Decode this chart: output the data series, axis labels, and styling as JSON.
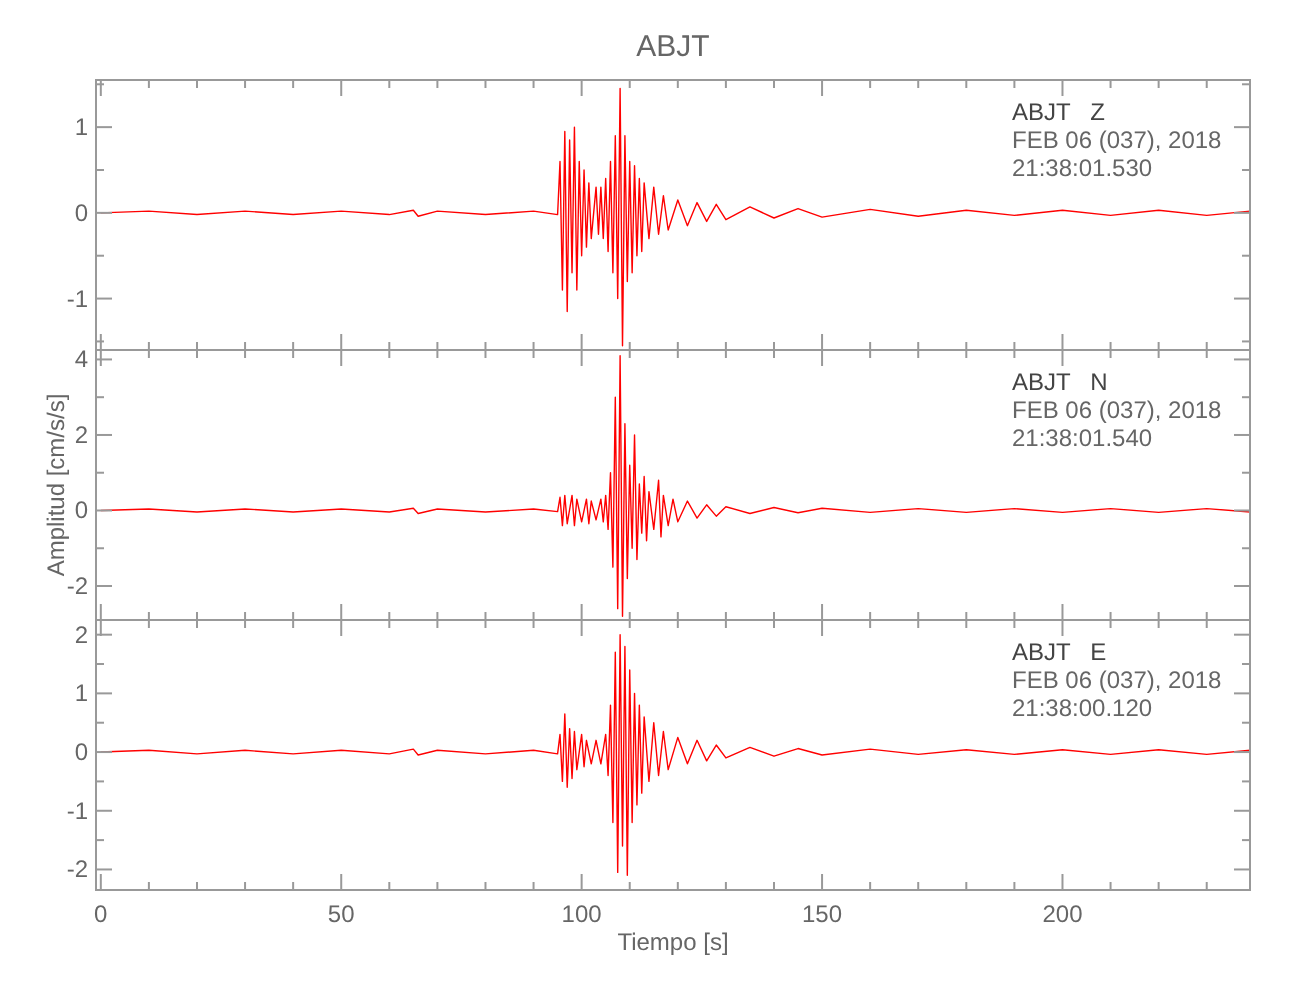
{
  "chart_data": [
    {
      "type": "line",
      "title": "ABJT",
      "x": [
        0,
        10,
        20,
        30,
        40,
        50,
        60,
        65,
        66,
        70,
        80,
        90,
        95,
        95.5,
        96,
        96.5,
        97,
        97.5,
        98,
        98.5,
        99,
        99.5,
        100,
        100.5,
        101,
        101.5,
        102,
        103,
        103.5,
        104,
        104.5,
        105,
        105.5,
        106,
        106.5,
        107,
        107.5,
        108,
        108.5,
        109,
        109.5,
        110,
        110.5,
        111,
        111.5,
        112,
        112.5,
        113,
        114,
        115,
        116,
        117,
        118,
        120,
        122,
        124,
        126,
        128,
        130,
        135,
        140,
        145,
        150,
        160,
        170,
        180,
        190,
        200,
        210,
        220,
        230,
        239
      ],
      "series": [
        {
          "color": "#ff0000",
          "values": [
            0,
            0.02,
            -0.02,
            0.02,
            -0.02,
            0.02,
            -0.02,
            0.03,
            -0.04,
            0.02,
            -0.02,
            0.02,
            -0.02,
            0.6,
            -0.9,
            0.95,
            -1.15,
            0.85,
            -0.7,
            1.0,
            -0.9,
            0.6,
            -0.5,
            0.5,
            -0.4,
            0.35,
            -0.3,
            0.3,
            -0.25,
            0.3,
            -0.3,
            0.4,
            -0.45,
            0.6,
            -0.7,
            0.9,
            -1.0,
            1.45,
            -1.55,
            0.9,
            -0.8,
            0.6,
            -0.7,
            0.55,
            -0.5,
            0.4,
            -0.45,
            0.35,
            -0.3,
            0.3,
            -0.25,
            0.2,
            -0.2,
            0.15,
            -0.15,
            0.12,
            -0.1,
            0.1,
            -0.08,
            0.07,
            -0.06,
            0.05,
            -0.05,
            0.04,
            -0.04,
            0.03,
            -0.03,
            0.03,
            -0.03,
            0.03,
            -0.03,
            0.02
          ]
        }
      ],
      "xlim": [
        -1,
        239
      ],
      "xticks": [
        0,
        {
          "value": 10,
          "label": null
        },
        {
          "value": 20,
          "label": null
        },
        {
          "value": 30,
          "label": null
        },
        {
          "value": 40,
          "label": null
        },
        50,
        {
          "value": 60,
          "label": null
        },
        {
          "value": 70,
          "label": null
        },
        {
          "value": 80,
          "label": null
        },
        {
          "value": 90,
          "label": null
        },
        100,
        {
          "value": 110,
          "label": null
        },
        {
          "value": 120,
          "label": null
        },
        {
          "value": 130,
          "label": null
        },
        {
          "value": 140,
          "label": null
        },
        150,
        {
          "value": 160,
          "label": null
        },
        {
          "value": 170,
          "label": null
        },
        {
          "value": 180,
          "label": null
        },
        {
          "value": 190,
          "label": null
        },
        200,
        {
          "value": 210,
          "label": null
        },
        {
          "value": 220,
          "label": null
        },
        {
          "value": 230,
          "label": null
        }
      ],
      "ylim": [
        -1.6,
        1.55
      ],
      "yticks": [
        {
          "value": -1.5,
          "label": null
        },
        -1,
        {
          "value": -0.5,
          "label": null
        },
        0,
        {
          "value": 0.5,
          "label": null
        },
        1,
        {
          "value": 1.5,
          "label": null
        }
      ],
      "tick_labels": "y",
      "line_style": "solid",
      "marker": "none",
      "grid": false,
      "annotations": [
        "ABJT   Z",
        "FEB 06 (037), 2018",
        "21:38:01.530"
      ]
    },
    {
      "type": "line",
      "ylabel": "Amplitud [cm/s/s]",
      "x": [
        0,
        10,
        20,
        30,
        40,
        50,
        60,
        65,
        66,
        70,
        80,
        90,
        95,
        95.5,
        96,
        96.5,
        97,
        98,
        98.5,
        99,
        100,
        101,
        101.5,
        102,
        103,
        104,
        104.5,
        105,
        105.5,
        106,
        106.5,
        107,
        107.5,
        108,
        108.5,
        109,
        109.5,
        110,
        110.5,
        111,
        111.5,
        112,
        112.5,
        113,
        113.5,
        114,
        115,
        116,
        116.5,
        117,
        118,
        119,
        120,
        122,
        124,
        126,
        128,
        130,
        135,
        140,
        145,
        150,
        160,
        170,
        180,
        190,
        200,
        210,
        220,
        230,
        239
      ],
      "series": [
        {
          "color": "#ff0000",
          "values": [
            0,
            0.04,
            -0.04,
            0.04,
            -0.04,
            0.04,
            -0.04,
            0.06,
            -0.08,
            0.04,
            -0.04,
            0.04,
            -0.03,
            0.35,
            -0.4,
            0.4,
            -0.35,
            0.4,
            -0.4,
            0.3,
            -0.3,
            0.3,
            -0.35,
            0.25,
            -0.25,
            0.3,
            -0.3,
            0.4,
            -0.5,
            1.0,
            -1.5,
            3.0,
            -2.6,
            4.1,
            -2.8,
            2.3,
            -1.8,
            1.2,
            -1.0,
            2.0,
            -1.3,
            0.7,
            -0.6,
            0.9,
            -0.8,
            0.5,
            -0.5,
            0.8,
            -0.7,
            0.4,
            -0.4,
            0.3,
            -0.3,
            0.25,
            -0.2,
            0.15,
            -0.15,
            0.1,
            -0.08,
            0.08,
            -0.06,
            0.06,
            -0.05,
            0.05,
            -0.05,
            0.05,
            -0.05,
            0.05,
            -0.05,
            0.05,
            -0.04
          ]
        }
      ],
      "xlim": [
        -1,
        239
      ],
      "xticks": [
        0,
        {
          "value": 10,
          "label": null
        },
        {
          "value": 20,
          "label": null
        },
        {
          "value": 30,
          "label": null
        },
        {
          "value": 40,
          "label": null
        },
        50,
        {
          "value": 60,
          "label": null
        },
        {
          "value": 70,
          "label": null
        },
        {
          "value": 80,
          "label": null
        },
        {
          "value": 90,
          "label": null
        },
        100,
        {
          "value": 110,
          "label": null
        },
        {
          "value": 120,
          "label": null
        },
        {
          "value": 130,
          "label": null
        },
        {
          "value": 140,
          "label": null
        },
        150,
        {
          "value": 160,
          "label": null
        },
        {
          "value": 170,
          "label": null
        },
        {
          "value": 180,
          "label": null
        },
        {
          "value": 190,
          "label": null
        },
        200,
        {
          "value": 210,
          "label": null
        },
        {
          "value": 220,
          "label": null
        },
        {
          "value": 230,
          "label": null
        }
      ],
      "ylim": [
        -2.9,
        4.25
      ],
      "yticks": [
        -2,
        {
          "value": -1,
          "label": null
        },
        0,
        {
          "value": 1,
          "label": null
        },
        2,
        {
          "value": 3,
          "label": null
        },
        4
      ],
      "tick_labels": "y",
      "line_style": "solid",
      "marker": "none",
      "grid": false,
      "annotations": [
        "ABJT   N",
        "FEB 06 (037), 2018",
        "21:38:01.540"
      ]
    },
    {
      "type": "line",
      "xlabel": "Tiempo [s]",
      "x": [
        0,
        10,
        20,
        30,
        40,
        50,
        60,
        65,
        66,
        70,
        80,
        90,
        95,
        95.5,
        96,
        96.5,
        97,
        97.5,
        98,
        98.5,
        99,
        100,
        100.5,
        101,
        102,
        103,
        104,
        105,
        105.5,
        106,
        106.5,
        107,
        107.5,
        108,
        108.5,
        109,
        109.5,
        110,
        110.5,
        111,
        111.5,
        112,
        112.5,
        113,
        114,
        115,
        116,
        117,
        118,
        120,
        122,
        124,
        126,
        128,
        130,
        135,
        140,
        145,
        150,
        160,
        170,
        180,
        190,
        200,
        210,
        220,
        230,
        239
      ],
      "series": [
        {
          "color": "#ff0000",
          "values": [
            0,
            0.03,
            -0.03,
            0.03,
            -0.03,
            0.03,
            -0.03,
            0.05,
            -0.05,
            0.03,
            -0.03,
            0.03,
            -0.03,
            0.3,
            -0.5,
            0.65,
            -0.6,
            0.4,
            -0.45,
            0.35,
            -0.3,
            0.3,
            -0.25,
            0.2,
            -0.2,
            0.2,
            -0.2,
            0.3,
            -0.4,
            0.8,
            -1.2,
            1.7,
            -2.05,
            2.0,
            -1.6,
            1.8,
            -2.1,
            1.4,
            -1.2,
            1.0,
            -0.9,
            0.8,
            -0.7,
            0.6,
            -0.5,
            0.5,
            -0.4,
            0.35,
            -0.3,
            0.25,
            -0.2,
            0.2,
            -0.15,
            0.12,
            -0.1,
            0.08,
            -0.07,
            0.06,
            -0.05,
            0.05,
            -0.04,
            0.04,
            -0.04,
            0.04,
            -0.04,
            0.04,
            -0.04,
            0.03
          ]
        }
      ],
      "xlim": [
        -1,
        239
      ],
      "xticks": [
        0,
        {
          "value": 10,
          "label": null
        },
        {
          "value": 20,
          "label": null
        },
        {
          "value": 30,
          "label": null
        },
        {
          "value": 40,
          "label": null
        },
        50,
        {
          "value": 60,
          "label": null
        },
        {
          "value": 70,
          "label": null
        },
        {
          "value": 80,
          "label": null
        },
        {
          "value": 90,
          "label": null
        },
        100,
        {
          "value": 110,
          "label": null
        },
        {
          "value": 120,
          "label": null
        },
        {
          "value": 130,
          "label": null
        },
        {
          "value": 140,
          "label": null
        },
        150,
        {
          "value": 160,
          "label": null
        },
        {
          "value": 170,
          "label": null
        },
        {
          "value": 180,
          "label": null
        },
        {
          "value": 190,
          "label": null
        },
        200,
        {
          "value": 210,
          "label": null
        },
        {
          "value": 220,
          "label": null
        },
        {
          "value": 230,
          "label": null
        }
      ],
      "ylim": [
        -2.35,
        2.25
      ],
      "yticks": [
        -2,
        {
          "value": -1.5,
          "label": null
        },
        -1,
        {
          "value": -0.5,
          "label": null
        },
        0,
        {
          "value": 0.5,
          "label": null
        },
        1,
        {
          "value": 1.5,
          "label": null
        },
        2
      ],
      "line_style": "solid",
      "marker": "none",
      "grid": false,
      "annotations": [
        "ABJT   E",
        "FEB 06 (037), 2018",
        "21:38:00.120"
      ]
    }
  ]
}
